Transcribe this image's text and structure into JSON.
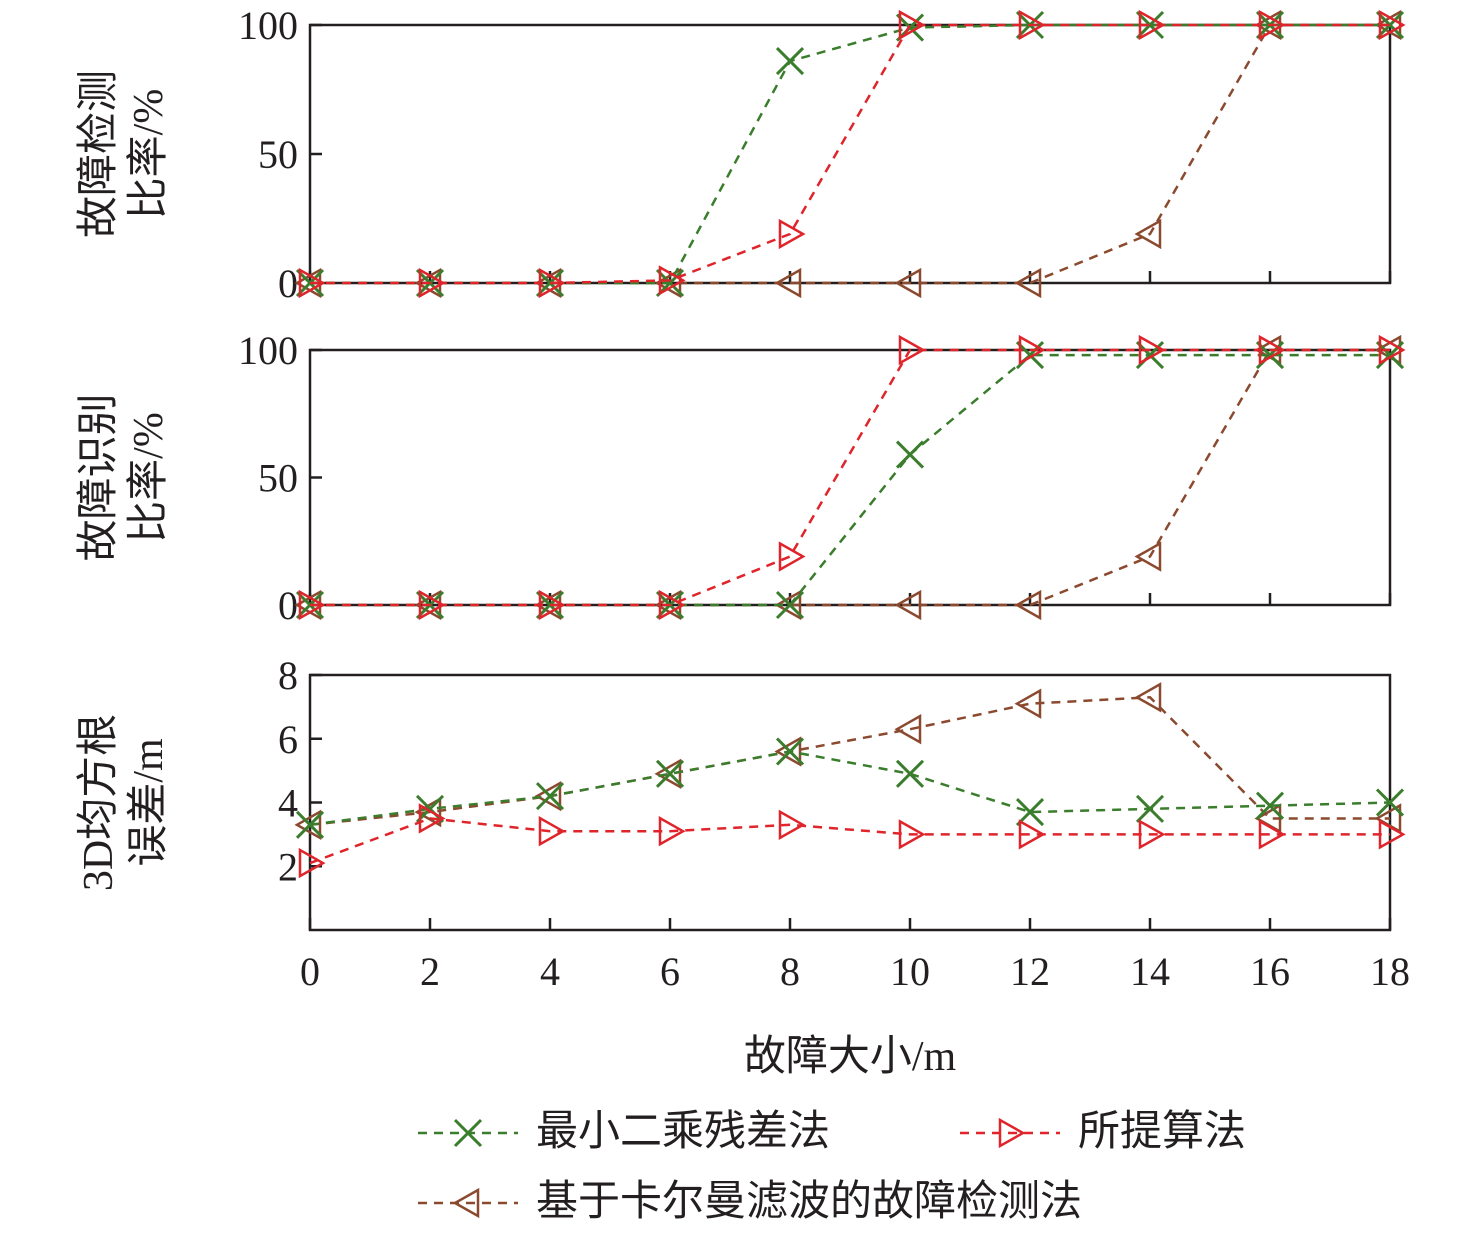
{
  "chart_data": {
    "type": "line",
    "x": [
      0,
      2,
      4,
      6,
      8,
      10,
      12,
      14,
      16,
      18
    ],
    "xlabel": "故障大小/m",
    "xticks": [
      "0",
      "2",
      "4",
      "6",
      "8",
      "10",
      "12",
      "14",
      "16",
      "18"
    ],
    "xlim": [
      0,
      18
    ],
    "legend": {
      "placement": "bottom",
      "entries": [
        "最小二乘残差法",
        "所提算法",
        "基于卡尔曼滤波的故障检测法"
      ]
    },
    "series_styles": [
      {
        "name": "最小二乘残差法",
        "color": "#3a7d2c",
        "marker": "x",
        "dash": "dashed"
      },
      {
        "name": "所提算法",
        "color": "#e0242b",
        "marker": "triangle-right",
        "dash": "dashed"
      },
      {
        "name": "基于卡尔曼滤波的故障检测法",
        "color": "#8b4a2f",
        "marker": "triangle-left",
        "dash": "dashed"
      }
    ],
    "panels": [
      {
        "ylabel_lines": [
          "故障检测",
          "比率/%"
        ],
        "ylim": [
          0,
          100
        ],
        "yticks": [
          "0",
          "50",
          "100"
        ],
        "ytick_values": [
          0,
          50,
          100
        ],
        "series": [
          {
            "name": "最小二乘残差法",
            "values": [
              0,
              0,
              0,
              0,
              86,
              99,
              100,
              100,
              100,
              100
            ]
          },
          {
            "name": "所提算法",
            "values": [
              0,
              0,
              0,
              1,
              19,
              100,
              100,
              100,
              100,
              100
            ]
          },
          {
            "name": "基于卡尔曼滤波的故障检测法",
            "values": [
              0,
              0,
              0,
              0,
              0,
              0,
              0,
              19,
              100,
              100
            ]
          }
        ]
      },
      {
        "ylabel_lines": [
          "故障识别",
          "比率/%"
        ],
        "ylim": [
          0,
          100
        ],
        "yticks": [
          "0",
          "50",
          "100"
        ],
        "ytick_values": [
          0,
          50,
          100
        ],
        "series": [
          {
            "name": "最小二乘残差法",
            "values": [
              0,
              0,
              0,
              0,
              0,
              59,
              98,
              98,
              98,
              98
            ]
          },
          {
            "name": "所提算法",
            "values": [
              0,
              0,
              0,
              0,
              19,
              100,
              100,
              100,
              100,
              100
            ]
          },
          {
            "name": "基于卡尔曼滤波的故障检测法",
            "values": [
              0,
              0,
              0,
              0,
              0,
              0,
              0,
              19,
              100,
              100
            ]
          }
        ]
      },
      {
        "ylabel_lines": [
          "3D均方根",
          "误差/m"
        ],
        "ylim": [
          0,
          8
        ],
        "yticks": [
          "2",
          "4",
          "6",
          "8"
        ],
        "ytick_values": [
          2,
          4,
          6,
          8
        ],
        "series": [
          {
            "name": "最小二乘残差法",
            "values": [
              3.3,
              3.8,
              4.2,
              4.9,
              5.6,
              4.9,
              3.7,
              3.8,
              3.9,
              4.0
            ]
          },
          {
            "name": "所提算法",
            "values": [
              2.1,
              3.5,
              3.1,
              3.1,
              3.3,
              3.0,
              3.0,
              3.0,
              3.0,
              3.0
            ]
          },
          {
            "name": "基于卡尔曼滤波的故障检测法",
            "values": [
              3.3,
              3.7,
              4.2,
              4.9,
              5.6,
              6.3,
              7.1,
              7.3,
              3.5,
              3.5
            ]
          }
        ]
      }
    ]
  }
}
